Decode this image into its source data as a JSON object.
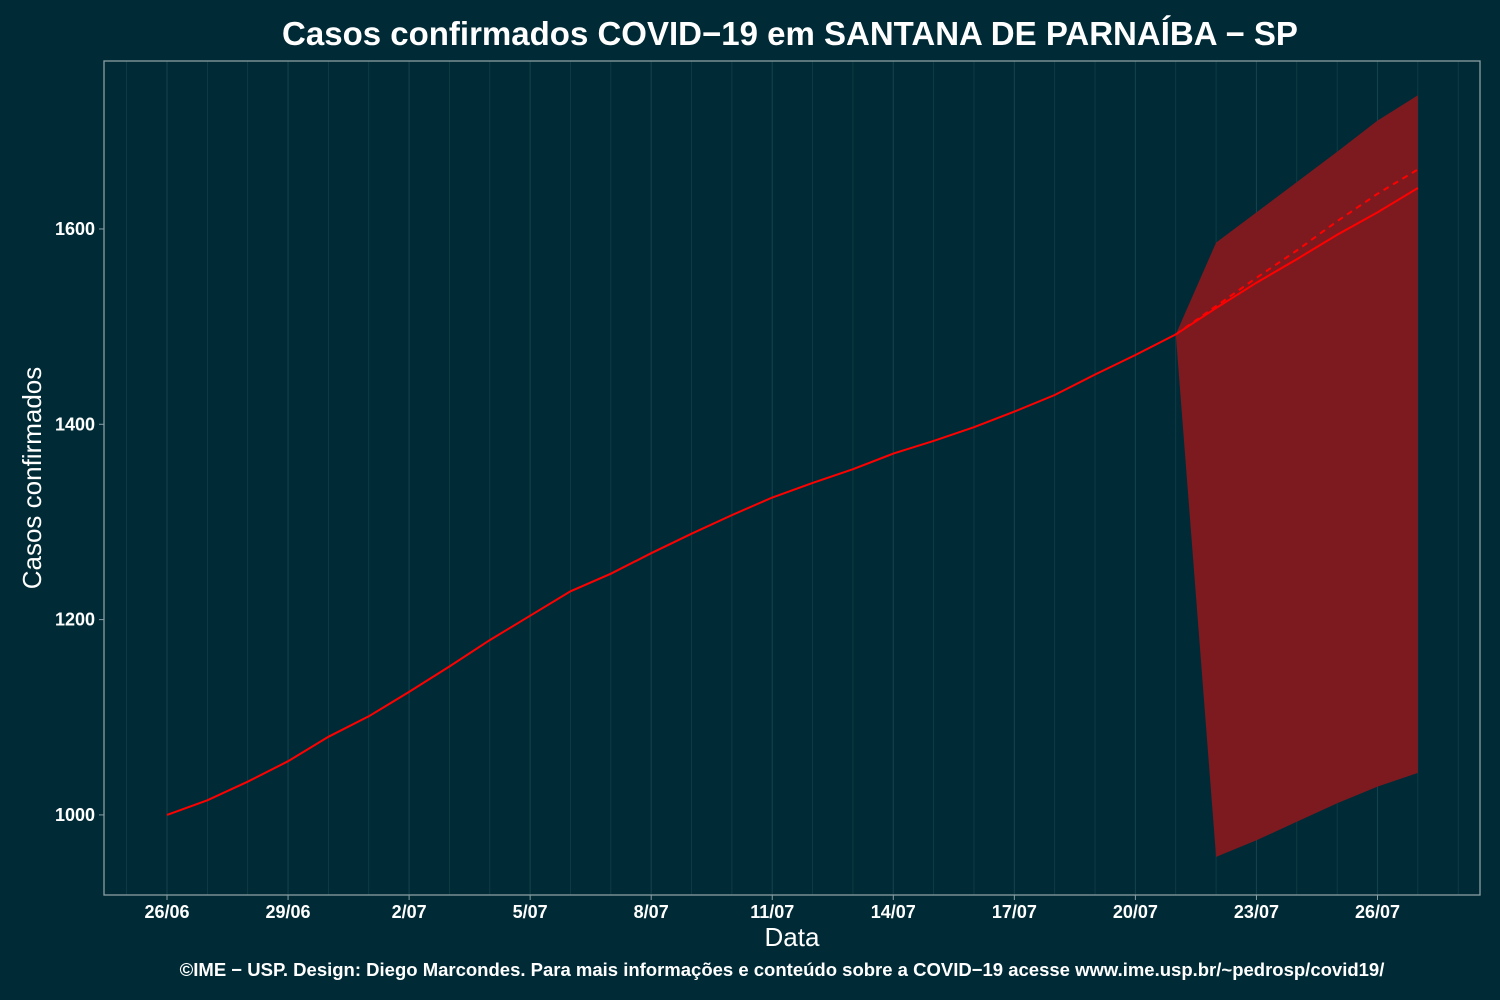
{
  "chart_data": {
    "type": "line",
    "title": "Casos confirmados COVID−19 em SANTANA DE PARNAÍBA − SP",
    "xlabel": "Data",
    "ylabel": "Casos confirmados",
    "caption": "©IME − USP. Design: Diego Marcondes. Para mais informações e conteúdo sobre a COVID−19 acesse www.ime.usp.br/~pedrosp/covid19/",
    "x_ticks": [
      "26/06",
      "29/06",
      "2/07",
      "5/07",
      "8/07",
      "11/07",
      "14/07",
      "17/07",
      "20/07",
      "23/07",
      "26/07"
    ],
    "y_ticks": [
      1000,
      1200,
      1400,
      1600
    ],
    "xlim": [
      "2020-06-26",
      "2020-07-27"
    ],
    "ylim": [
      918,
      1772
    ],
    "grid": "vertical",
    "series": [
      {
        "style": "solid",
        "x": [
          "2020-06-26",
          "2020-06-27",
          "2020-06-28",
          "2020-06-29",
          "2020-06-30",
          "2020-07-01",
          "2020-07-02",
          "2020-07-03",
          "2020-07-04",
          "2020-07-05",
          "2020-07-06",
          "2020-07-07",
          "2020-07-08",
          "2020-07-09",
          "2020-07-10",
          "2020-07-11",
          "2020-07-12",
          "2020-07-13",
          "2020-07-14",
          "2020-07-15",
          "2020-07-16",
          "2020-07-17",
          "2020-07-18",
          "2020-07-19",
          "2020-07-20",
          "2020-07-21",
          "2020-07-22",
          "2020-07-23",
          "2020-07-24",
          "2020-07-25",
          "2020-07-26",
          "2020-07-27"
        ],
        "values": [
          1000,
          1015,
          1034,
          1055,
          1080,
          1101,
          1126,
          1152,
          1179,
          1204,
          1229,
          1247,
          1268,
          1288,
          1307,
          1325,
          1340,
          1354,
          1370,
          1383,
          1397,
          1413,
          1430,
          1451,
          1471,
          1492,
          1519,
          1545,
          1569,
          1594,
          1617,
          1642
        ]
      },
      {
        "style": "dashed",
        "x": [
          "2020-07-21",
          "2020-07-22",
          "2020-07-23",
          "2020-07-24",
          "2020-07-25",
          "2020-07-26",
          "2020-07-27"
        ],
        "values": [
          1492,
          1521,
          1550,
          1578,
          1608,
          1636,
          1661
        ]
      }
    ],
    "band": {
      "x": [
        "2020-07-21",
        "2020-07-22",
        "2020-07-23",
        "2020-07-24",
        "2020-07-25",
        "2020-07-26",
        "2020-07-27"
      ],
      "lower": [
        1492,
        957,
        974,
        993,
        1012,
        1029,
        1043
      ],
      "upper": [
        1492,
        1586,
        1617,
        1648,
        1679,
        1711,
        1737
      ]
    },
    "colors": {
      "background": "#002b36",
      "line": "#ff0000",
      "band": "#7d1a1f",
      "grid": "#14414c",
      "frame": "#8a9ea3"
    }
  }
}
